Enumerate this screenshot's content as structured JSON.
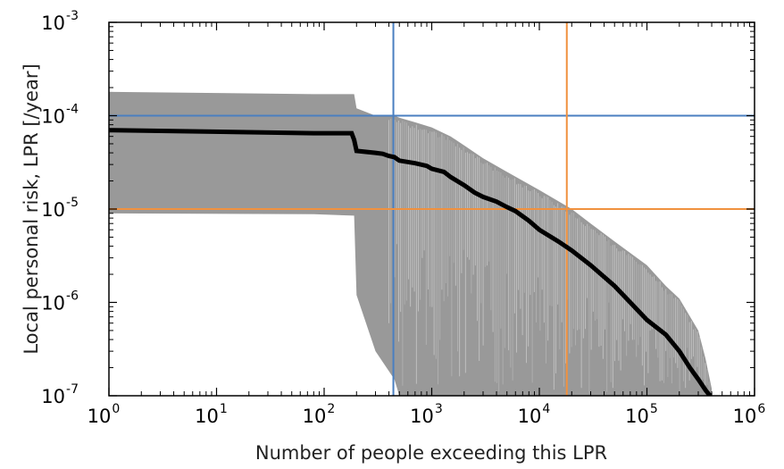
{
  "chart_data": {
    "type": "line",
    "title": "",
    "xlabel": "Number of people exceeding this LPR",
    "ylabel": "Local personal risk, LPR [/year]",
    "xscale": "log",
    "yscale": "log",
    "xlim": [
      1,
      1000000
    ],
    "ylim": [
      1e-07,
      0.001
    ],
    "grid": false,
    "x_ticks": [
      {
        "base": "10",
        "exp": "0",
        "value": 1
      },
      {
        "base": "10",
        "exp": "1",
        "value": 10
      },
      {
        "base": "10",
        "exp": "2",
        "value": 100
      },
      {
        "base": "10",
        "exp": "3",
        "value": 1000
      },
      {
        "base": "10",
        "exp": "4",
        "value": 10000
      },
      {
        "base": "10",
        "exp": "5",
        "value": 100000
      },
      {
        "base": "10",
        "exp": "6",
        "value": 1000000
      }
    ],
    "y_ticks": [
      {
        "base": "10",
        "exp": "-7",
        "value": 1e-07
      },
      {
        "base": "10",
        "exp": "-6",
        "value": 1e-06
      },
      {
        "base": "10",
        "exp": "-5",
        "value": 1e-05
      },
      {
        "base": "10",
        "exp": "-4",
        "value": 0.0001
      },
      {
        "base": "10",
        "exp": "-3",
        "value": 0.001
      }
    ],
    "series": [
      {
        "color": "#000000",
        "x": [
          1,
          80,
          180,
          190,
          200,
          300,
          350,
          400,
          450,
          500,
          700,
          900,
          1000,
          1300,
          1500,
          2000,
          2500,
          3000,
          4000,
          5000,
          6000,
          8000,
          10000,
          15000,
          20000,
          30000,
          50000,
          70000,
          100000,
          150000,
          200000,
          250000,
          300000,
          350000,
          380000,
          400000
        ],
        "y": [
          7e-05,
          6.5e-05,
          6.5e-05,
          5.5e-05,
          4.2e-05,
          4e-05,
          3.9e-05,
          3.7e-05,
          3.6e-05,
          3.3e-05,
          3.1e-05,
          2.9e-05,
          2.7e-05,
          2.5e-05,
          2.2e-05,
          1.8e-05,
          1.5e-05,
          1.35e-05,
          1.2e-05,
          1.05e-05,
          9.5e-06,
          7.5e-06,
          6e-06,
          4.5e-06,
          3.6e-06,
          2.5e-06,
          1.5e-06,
          1e-06,
          6.5e-07,
          4.5e-07,
          3e-07,
          2e-07,
          1.5e-07,
          1.15e-07,
          1.02e-07,
          1e-07
        ]
      }
    ],
    "uncertainty_band": {
      "color": "#999999",
      "x": [
        1,
        80,
        190,
        200,
        300,
        450,
        500,
        700,
        1000,
        1500,
        2000,
        3000,
        5000,
        10000,
        20000,
        30000,
        50000,
        100000,
        150000,
        200000,
        300000,
        350000,
        400000
      ],
      "upper": [
        0.00018,
        0.00017,
        0.00017,
        0.00012,
        0.0001,
        0.0001,
        9.5e-05,
        8.5e-05,
        7.5e-05,
        6e-05,
        4.8e-05,
        3.5e-05,
        2.5e-05,
        1.6e-05,
        1e-05,
        7e-06,
        4.5e-06,
        2.5e-06,
        1.5e-06,
        1.1e-06,
        5e-07,
        2.5e-07,
        1.2e-07
      ],
      "lower": [
        9e-06,
        8.8e-06,
        8.5e-06,
        1.2e-06,
        3e-07,
        1.5e-07,
        1e-07,
        1e-07,
        1e-07,
        1e-07,
        1e-07,
        1e-07,
        1e-07,
        1e-07,
        1e-07,
        1e-07,
        1e-07,
        1e-07,
        1e-07,
        1e-07,
        1e-07,
        1e-07,
        1e-07
      ]
    },
    "reference_lines": [
      {
        "orientation": "vertical",
        "value": 440,
        "color": "#4a7fc1"
      },
      {
        "orientation": "horizontal",
        "value": 0.0001,
        "color": "#4a7fc1"
      },
      {
        "orientation": "vertical",
        "value": 18000,
        "color": "#f0913f"
      },
      {
        "orientation": "horizontal",
        "value": 1e-05,
        "color": "#f0913f"
      }
    ]
  }
}
